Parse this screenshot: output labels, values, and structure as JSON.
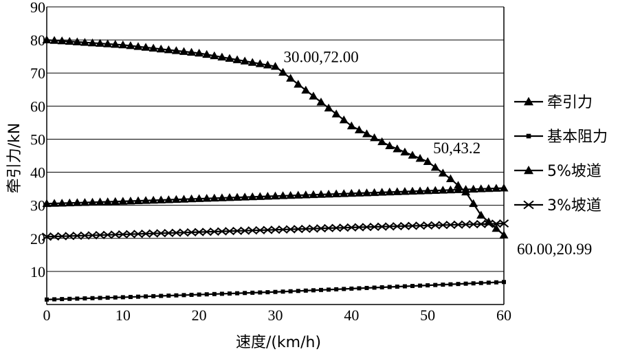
{
  "chart_data": {
    "type": "line",
    "title": "",
    "xlabel": "速度/(km/h)",
    "ylabel": "牵引力/kN",
    "xlim": [
      0,
      60
    ],
    "ylim": [
      0,
      90
    ],
    "x_ticks": [
      "0",
      "10",
      "20",
      "30",
      "40",
      "50",
      "60"
    ],
    "y_ticks": [
      "10",
      "20",
      "30",
      "40",
      "50",
      "60",
      "70",
      "80",
      "90"
    ],
    "grid": "horizontal",
    "legend_position": "right",
    "series": [
      {
        "name": "牵引力",
        "marker": "triangle",
        "points": [
          [
            0,
            80
          ],
          [
            10,
            78.5
          ],
          [
            20,
            76
          ],
          [
            30,
            72
          ],
          [
            35,
            63
          ],
          [
            40,
            54
          ],
          [
            45,
            48
          ],
          [
            50,
            43.2
          ],
          [
            53,
            38
          ],
          [
            55,
            34
          ],
          [
            57,
            27
          ],
          [
            60,
            20.99
          ]
        ]
      },
      {
        "name": "基本阻力",
        "marker": "square",
        "points": [
          [
            0,
            1.5
          ],
          [
            10,
            2.2
          ],
          [
            20,
            3.0
          ],
          [
            30,
            3.8
          ],
          [
            40,
            4.8
          ],
          [
            50,
            5.8
          ],
          [
            60,
            6.8
          ]
        ]
      },
      {
        "name": "5%坡道",
        "marker": "triangle",
        "points": [
          [
            0,
            30.5
          ],
          [
            10,
            31.2
          ],
          [
            20,
            32
          ],
          [
            30,
            32.8
          ],
          [
            40,
            33.6
          ],
          [
            50,
            34.4
          ],
          [
            60,
            35.2
          ]
        ]
      },
      {
        "name": "3%坡道",
        "marker": "x",
        "points": [
          [
            0,
            20.5
          ],
          [
            10,
            21.2
          ],
          [
            20,
            21.9
          ],
          [
            30,
            22.6
          ],
          [
            40,
            23.3
          ],
          [
            50,
            23.9
          ],
          [
            60,
            24.5
          ]
        ]
      }
    ],
    "annotations": [
      {
        "text": "30.00,72.00",
        "x": 30,
        "y": 72
      },
      {
        "text": "50,43.2",
        "x": 50,
        "y": 43.2
      },
      {
        "text": "60.00,20.99",
        "x": 60,
        "y": 20.99
      }
    ]
  }
}
